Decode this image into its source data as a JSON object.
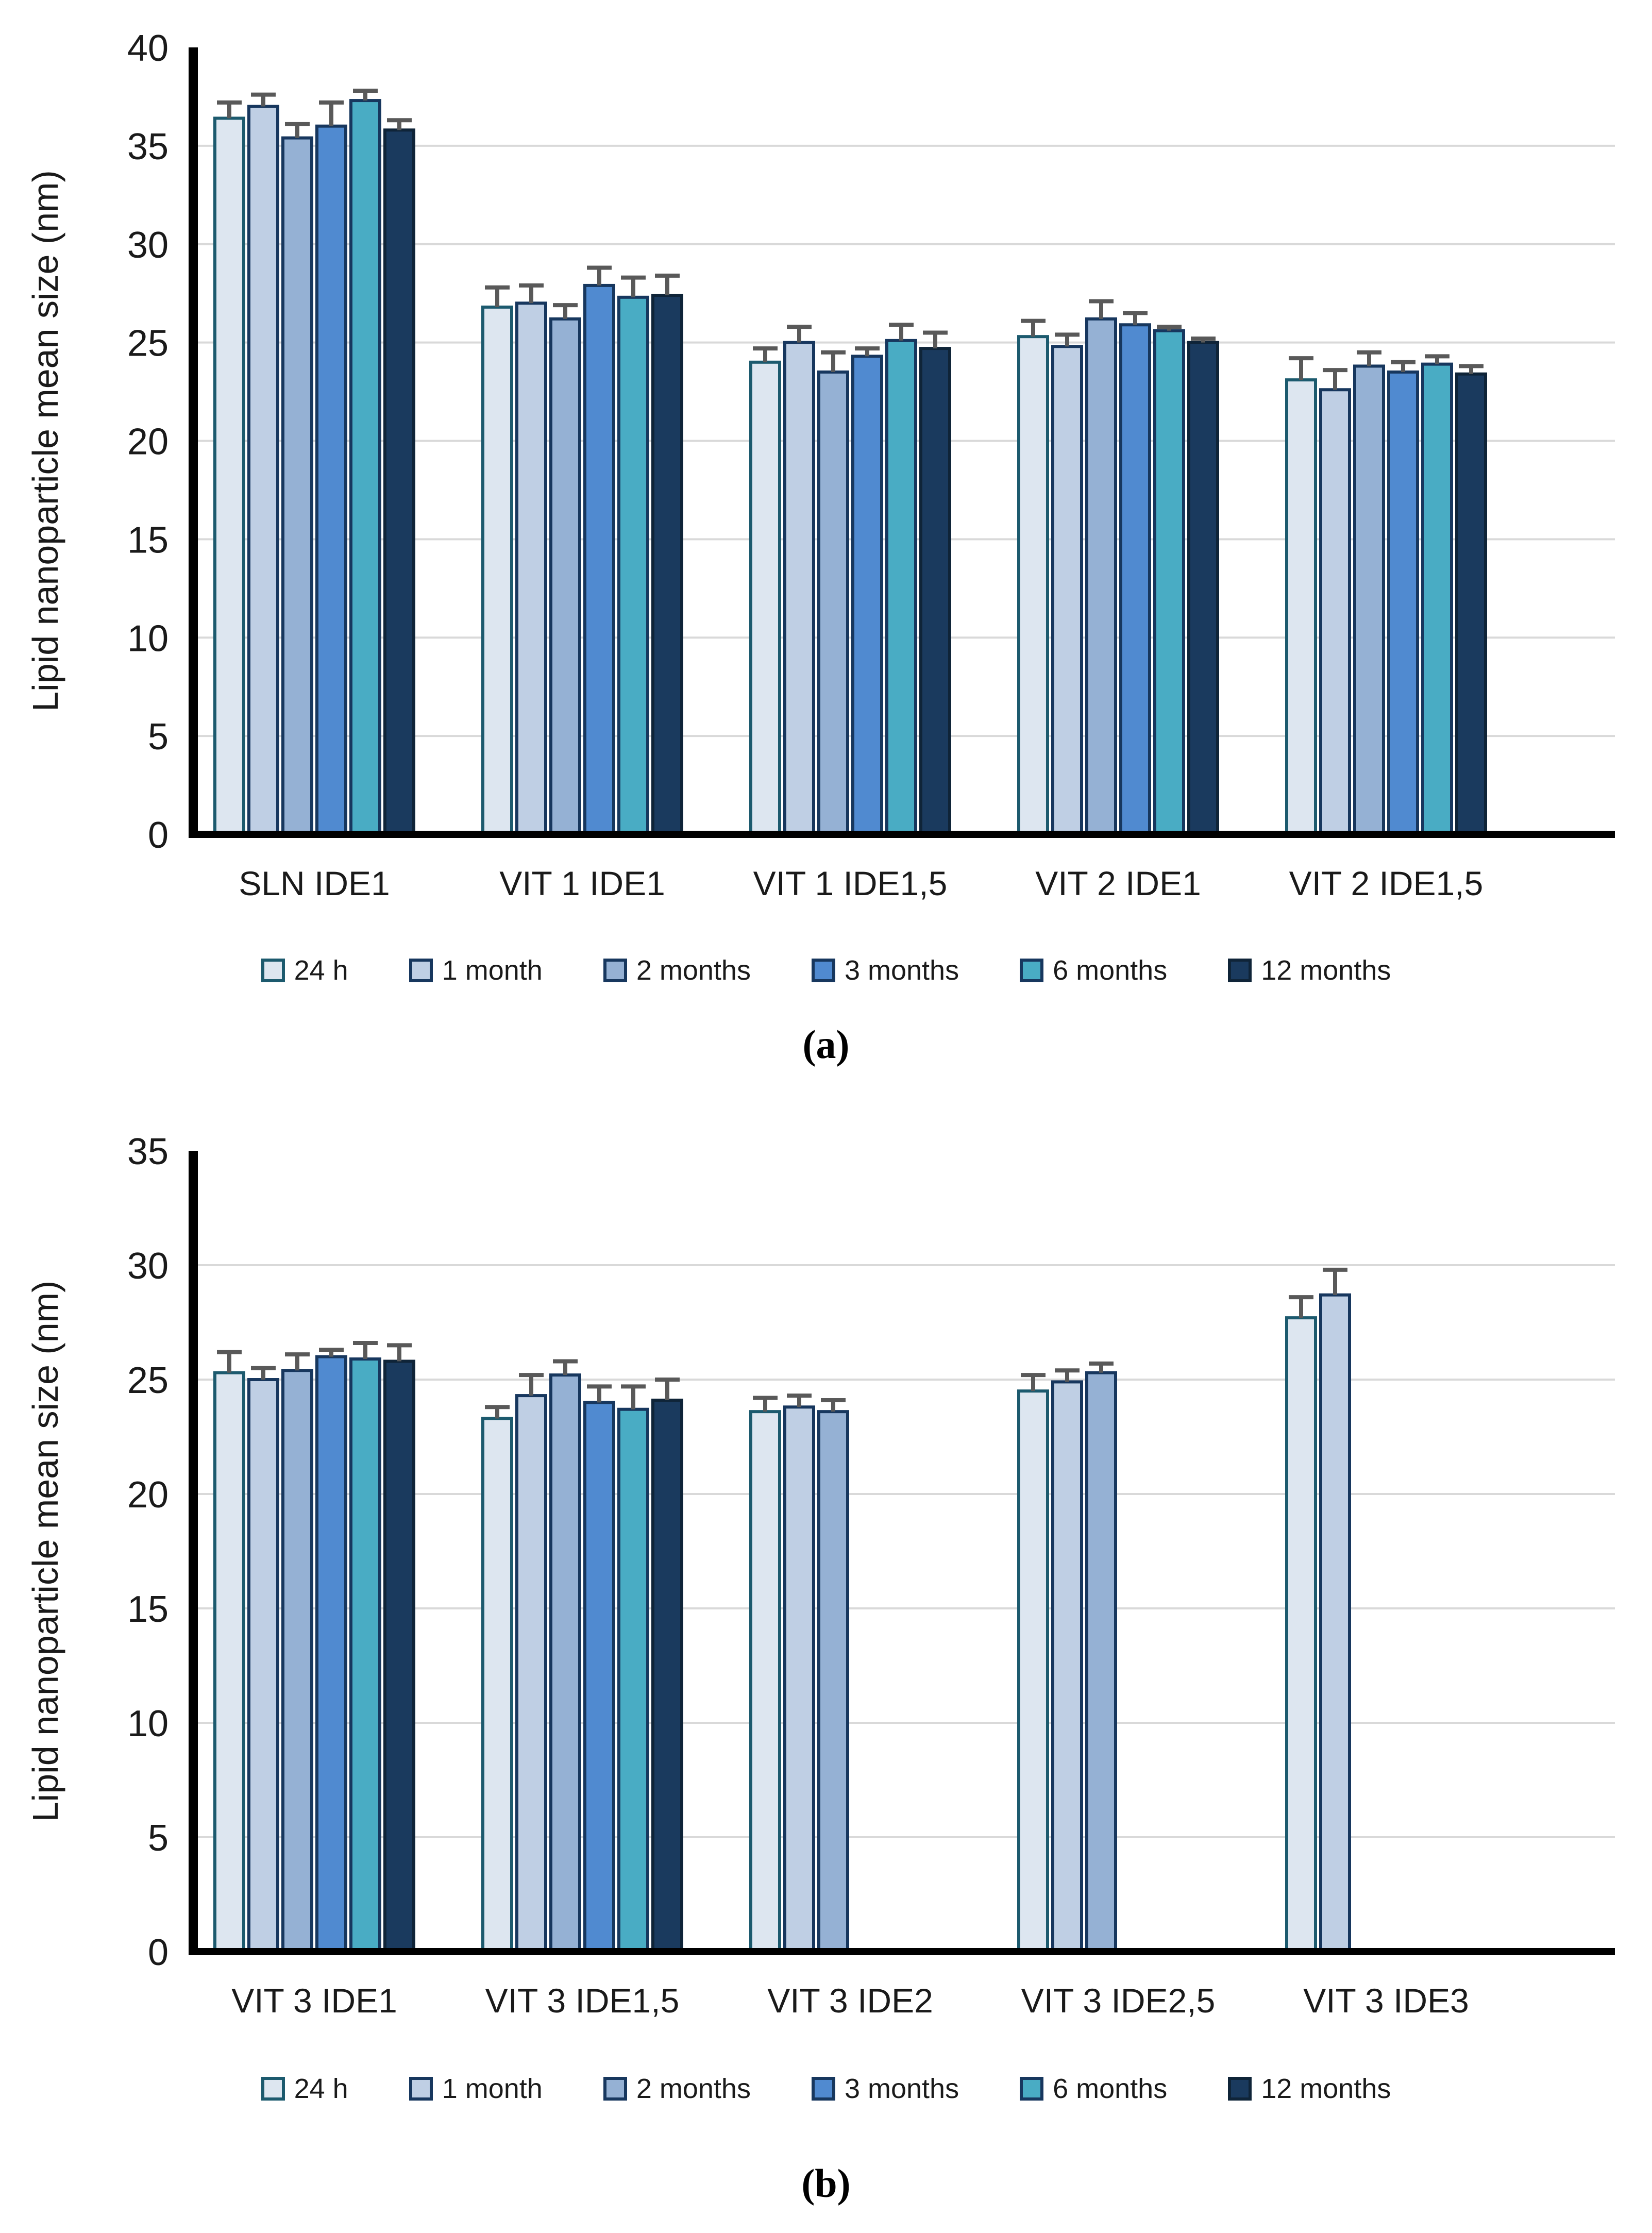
{
  "figure": {
    "background": "#ffffff",
    "text_color": "#1a1a1a",
    "gridline_color": "#d9d9d9",
    "axis_color": "#000000",
    "error_bar_color": "#595959"
  },
  "legend": {
    "items": [
      {
        "label": "24 h",
        "fill": "#dde6f0",
        "border": "#1c5a6e"
      },
      {
        "label": "1 month",
        "fill": "#bfcfe4",
        "border": "#17375e"
      },
      {
        "label": "2 months",
        "fill": "#95b1d4",
        "border": "#17375e"
      },
      {
        "label": "3 months",
        "fill": "#508ad0",
        "border": "#17375e"
      },
      {
        "label": "6 months",
        "fill": "#49acc4",
        "border": "#17375e"
      },
      {
        "label": "12 months",
        "fill": "#1a3a5e",
        "border": "#0f2438"
      }
    ]
  },
  "chart_data": [
    {
      "id": "a",
      "type": "bar",
      "caption": "(a)",
      "ylabel": "Lipid nanoparticle mean size (nm)",
      "ylim": [
        0,
        40
      ],
      "ytick_step": 5,
      "yticks": [
        0,
        5,
        10,
        15,
        20,
        25,
        30,
        35,
        40
      ],
      "grid": true,
      "legend_position": "bottom",
      "categories": [
        "SLN IDE1",
        "VIT 1 IDE1",
        "VIT 1 IDE1,5",
        "VIT 2 IDE1",
        "VIT 2 IDE1,5"
      ],
      "series": [
        {
          "name": "24 h",
          "values": [
            36.4,
            26.8,
            24.0,
            25.3,
            23.1
          ],
          "errors": [
            0.8,
            1.0,
            0.7,
            0.8,
            1.1
          ]
        },
        {
          "name": "1 month",
          "values": [
            37.0,
            27.0,
            25.0,
            24.8,
            22.6
          ],
          "errors": [
            0.6,
            0.9,
            0.8,
            0.6,
            1.0
          ]
        },
        {
          "name": "2 months",
          "values": [
            35.4,
            26.2,
            23.5,
            26.2,
            23.8
          ],
          "errors": [
            0.7,
            0.7,
            1.0,
            0.9,
            0.7
          ]
        },
        {
          "name": "3 months",
          "values": [
            36.0,
            27.9,
            24.3,
            25.9,
            23.5
          ],
          "errors": [
            1.2,
            0.9,
            0.4,
            0.6,
            0.5
          ]
        },
        {
          "name": "6 months",
          "values": [
            37.3,
            27.3,
            25.1,
            25.6,
            23.9
          ],
          "errors": [
            0.5,
            1.0,
            0.8,
            0.2,
            0.4
          ]
        },
        {
          "name": "12 months",
          "values": [
            35.8,
            27.4,
            24.7,
            25.0,
            23.4
          ],
          "errors": [
            0.5,
            1.0,
            0.8,
            0.2,
            0.4
          ]
        }
      ]
    },
    {
      "id": "b",
      "type": "bar",
      "caption": "(b)",
      "ylabel": "Lipid nanoparticle mean size (nm)",
      "ylim": [
        0,
        35
      ],
      "ytick_step": 5,
      "yticks": [
        0,
        5,
        10,
        15,
        20,
        25,
        30,
        35
      ],
      "grid": true,
      "legend_position": "bottom",
      "categories": [
        "VIT 3 IDE1",
        "VIT 3 IDE1,5",
        "VIT 3 IDE2",
        "VIT 3 IDE2,5",
        "VIT 3 IDE3"
      ],
      "series": [
        {
          "name": "24 h",
          "values": [
            25.3,
            23.3,
            23.6,
            24.5,
            27.7
          ],
          "errors": [
            0.9,
            0.5,
            0.6,
            0.7,
            0.9
          ]
        },
        {
          "name": "1 month",
          "values": [
            25.0,
            24.3,
            23.8,
            24.9,
            28.7
          ],
          "errors": [
            0.5,
            0.9,
            0.5,
            0.5,
            1.1
          ]
        },
        {
          "name": "2 months",
          "values": [
            25.4,
            25.2,
            23.6,
            25.3,
            null
          ],
          "errors": [
            0.7,
            0.6,
            0.5,
            0.4,
            null
          ]
        },
        {
          "name": "3 months",
          "values": [
            26.0,
            24.0,
            null,
            null,
            null
          ],
          "errors": [
            0.3,
            0.7,
            null,
            null,
            null
          ]
        },
        {
          "name": "6 months",
          "values": [
            25.9,
            23.7,
            null,
            null,
            null
          ],
          "errors": [
            0.7,
            1.0,
            null,
            null,
            null
          ]
        },
        {
          "name": "12 months",
          "values": [
            25.8,
            24.1,
            null,
            null,
            null
          ],
          "errors": [
            0.7,
            0.9,
            null,
            null,
            null
          ]
        }
      ]
    }
  ]
}
